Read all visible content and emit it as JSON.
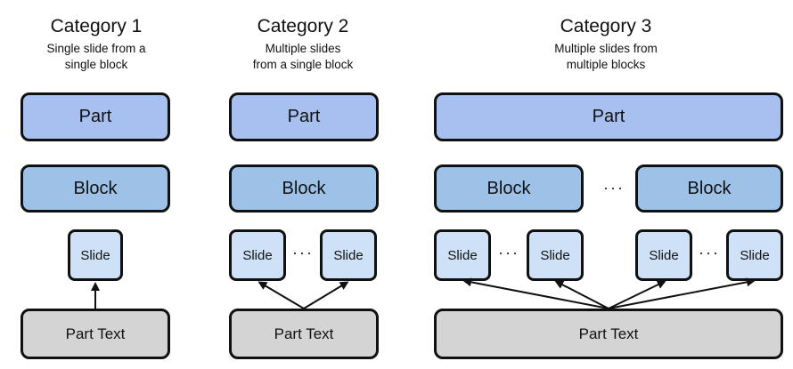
{
  "categories": [
    {
      "title": "Category 1",
      "subtitle_line1": "Single slide from a",
      "subtitle_line2": "single block",
      "part_label": "Part",
      "block_label": "Block",
      "slide_label": "Slide",
      "part_text_label": "Part Text"
    },
    {
      "title": "Category 2",
      "subtitle_line1": "Multiple slides",
      "subtitle_line2": "from a single block",
      "part_label": "Part",
      "block_label": "Block",
      "slide_label": "Slide",
      "ellipsis": "···",
      "part_text_label": "Part Text"
    },
    {
      "title": "Category 3",
      "subtitle_line1": "Multiple slides from",
      "subtitle_line2": "multiple blocks",
      "part_label": "Part",
      "block_label": "Block",
      "slide_label": "Slide",
      "ellipsis": "···",
      "part_text_label": "Part Text"
    }
  ],
  "colors": {
    "part": "#a8c0f0",
    "block": "#9ec1e8",
    "slide": "#cfe1f6",
    "part_text": "#d4d4d4",
    "stroke": "#111111"
  }
}
